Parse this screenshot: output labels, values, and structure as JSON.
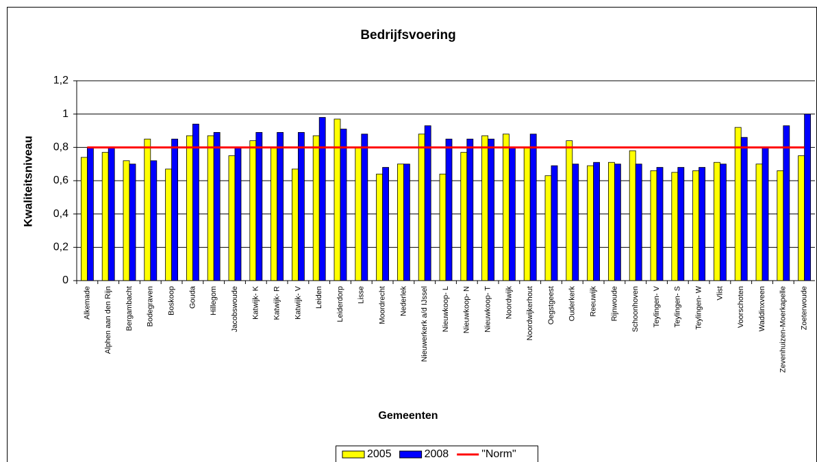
{
  "chart_data": {
    "type": "bar",
    "title": "Bedrijfsvoering",
    "x_label": "Gemeenten",
    "y_label": "Kwaliteitsniveau",
    "categories": [
      "Alkemade",
      "Alphen aan den Rijn",
      "Bergambacht",
      "Bodegraven",
      "Boskoop",
      "Gouda",
      "Hillegom",
      "Jacobswoude",
      "Katwijk- K",
      "Katwijk- R",
      "Katwijk- V",
      "Leiden",
      "Leiderdorp",
      "Lisse",
      "Moordrecht",
      "Nederlek",
      "Nieuwerkerk a/d IJssel",
      "Nieuwkoop- L",
      "Nieuwkoop- N",
      "Nieuwkoop- T",
      "Noordwijk",
      "Noordwijkerhout",
      "Oegstgeest",
      "Ouderkerk",
      "Reeuwijk",
      "Rijnwoude",
      "Schoonhoven",
      "Teylingen- V",
      "Teylingen- S",
      "Teylingen- W",
      "Vlist",
      "Voorschoten",
      "Waddinxveen",
      "Zevenhuizen-Moerkapelle",
      "Zoeterwoude"
    ],
    "series": [
      {
        "name": "2005",
        "color": "#ffff00",
        "values": [
          0.74,
          0.77,
          0.72,
          0.85,
          0.67,
          0.87,
          0.87,
          0.75,
          0.84,
          0.8,
          0.67,
          0.87,
          0.97,
          0.8,
          0.64,
          0.7,
          0.88,
          0.64,
          0.77,
          0.87,
          0.88,
          0.8,
          0.63,
          0.84,
          0.69,
          0.71,
          0.78,
          0.66,
          0.65,
          0.66,
          0.71,
          0.92,
          0.7,
          0.66,
          0.75
        ]
      },
      {
        "name": "2008",
        "color": "#0000ff",
        "values": [
          0.8,
          0.8,
          0.7,
          0.72,
          0.85,
          0.94,
          0.89,
          0.8,
          0.89,
          0.89,
          0.89,
          0.98,
          0.91,
          0.88,
          0.68,
          0.7,
          0.93,
          0.85,
          0.85,
          0.85,
          0.8,
          0.88,
          0.69,
          0.7,
          0.71,
          0.7,
          0.7,
          0.68,
          0.68,
          0.68,
          0.7,
          0.86,
          0.8,
          0.93,
          1.0
        ]
      },
      {
        "name": "\"Norm\"",
        "color": "#ff0000",
        "kind": "line",
        "values": [
          0.8,
          0.8,
          0.8,
          0.8,
          0.8,
          0.8,
          0.8,
          0.8,
          0.8,
          0.8,
          0.8,
          0.8,
          0.8,
          0.8,
          0.8,
          0.8,
          0.8,
          0.8,
          0.8,
          0.8,
          0.8,
          0.8,
          0.8,
          0.8,
          0.8,
          0.8,
          0.8,
          0.8,
          0.8,
          0.8,
          0.8,
          0.8,
          0.8,
          0.8,
          0.8
        ]
      }
    ],
    "ylim": [
      0,
      1.2
    ],
    "yticks": [
      0,
      {
        "value": 0.2,
        "label": "0,2"
      },
      {
        "value": 0.4,
        "label": "0,4"
      },
      {
        "value": 0.6,
        "label": "0,6"
      },
      {
        "value": 0.8,
        "label": "0,8"
      },
      1,
      {
        "value": 1.2,
        "label": "1,2"
      }
    ],
    "grid": true
  }
}
